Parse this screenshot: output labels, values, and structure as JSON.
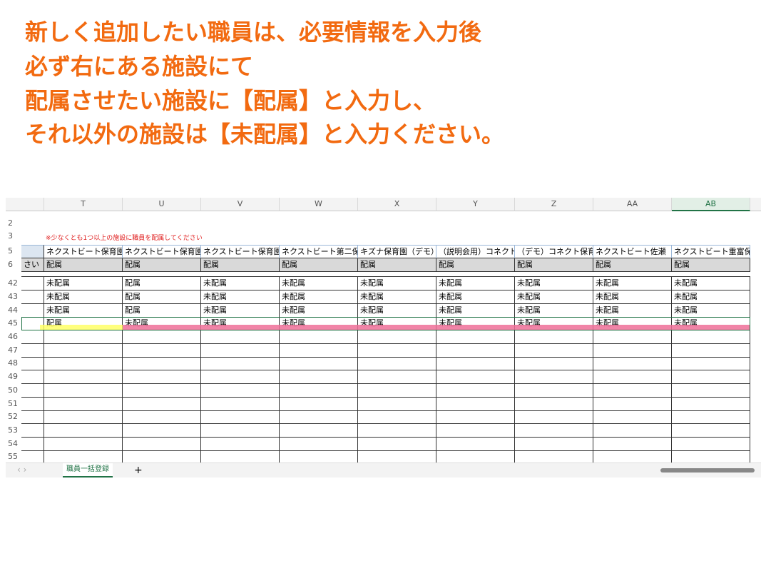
{
  "instructions": [
    "新しく追加したい職員は、必要情報を入力後",
    "必ず右にある施設にて",
    "配属させたい施設に【配属】と入力し、",
    "それ以外の施設は【未配属】と入力ください。"
  ],
  "sheet": {
    "columns": [
      "T",
      "U",
      "V",
      "W",
      "X",
      "Y",
      "Z",
      "AA",
      "AB"
    ],
    "rows": [
      {
        "label": "2"
      },
      {
        "label": "3",
        "note": "※少なくとも1つ以上の施設に職員を配属してください"
      },
      {
        "label": "5",
        "cells": [
          "ネクストビート保育園",
          "ネクストビート保育園",
          "ネクストビート保育園",
          "ネクストビート第二保",
          "キズナ保育園（デモ）",
          "（説明会用）コネクト",
          "（デモ）コネクト保育",
          "ネクストビート佐瀬",
          "ネクストビート重富保育"
        ]
      },
      {
        "label": "6",
        "first": "さい",
        "cells": [
          "配属",
          "配属",
          "配属",
          "配属",
          "配属",
          "配属",
          "配属",
          "配属",
          "配属"
        ]
      },
      {
        "label": "42",
        "cells": [
          "未配属",
          "配属",
          "未配属",
          "未配属",
          "未配属",
          "未配属",
          "未配属",
          "未配属",
          "未配属"
        ]
      },
      {
        "label": "43",
        "cells": [
          "未配属",
          "配属",
          "未配属",
          "未配属",
          "未配属",
          "未配属",
          "未配属",
          "未配属",
          "未配属"
        ]
      },
      {
        "label": "44",
        "cells": [
          "未配属",
          "配属",
          "未配属",
          "未配属",
          "未配属",
          "未配属",
          "未配属",
          "未配属",
          "未配属"
        ]
      },
      {
        "label": "45",
        "cells": [
          "配属",
          "未配属",
          "未配属",
          "未配属",
          "未配属",
          "未配属",
          "未配属",
          "未配属",
          "未配属"
        ]
      },
      {
        "label": "46"
      },
      {
        "label": "47"
      },
      {
        "label": "48"
      },
      {
        "label": "49"
      },
      {
        "label": "50"
      },
      {
        "label": "51"
      },
      {
        "label": "52"
      },
      {
        "label": "53"
      },
      {
        "label": "54"
      },
      {
        "label": "55"
      }
    ]
  },
  "tabs": {
    "sheet": "職員一括登録",
    "add": "+"
  }
}
